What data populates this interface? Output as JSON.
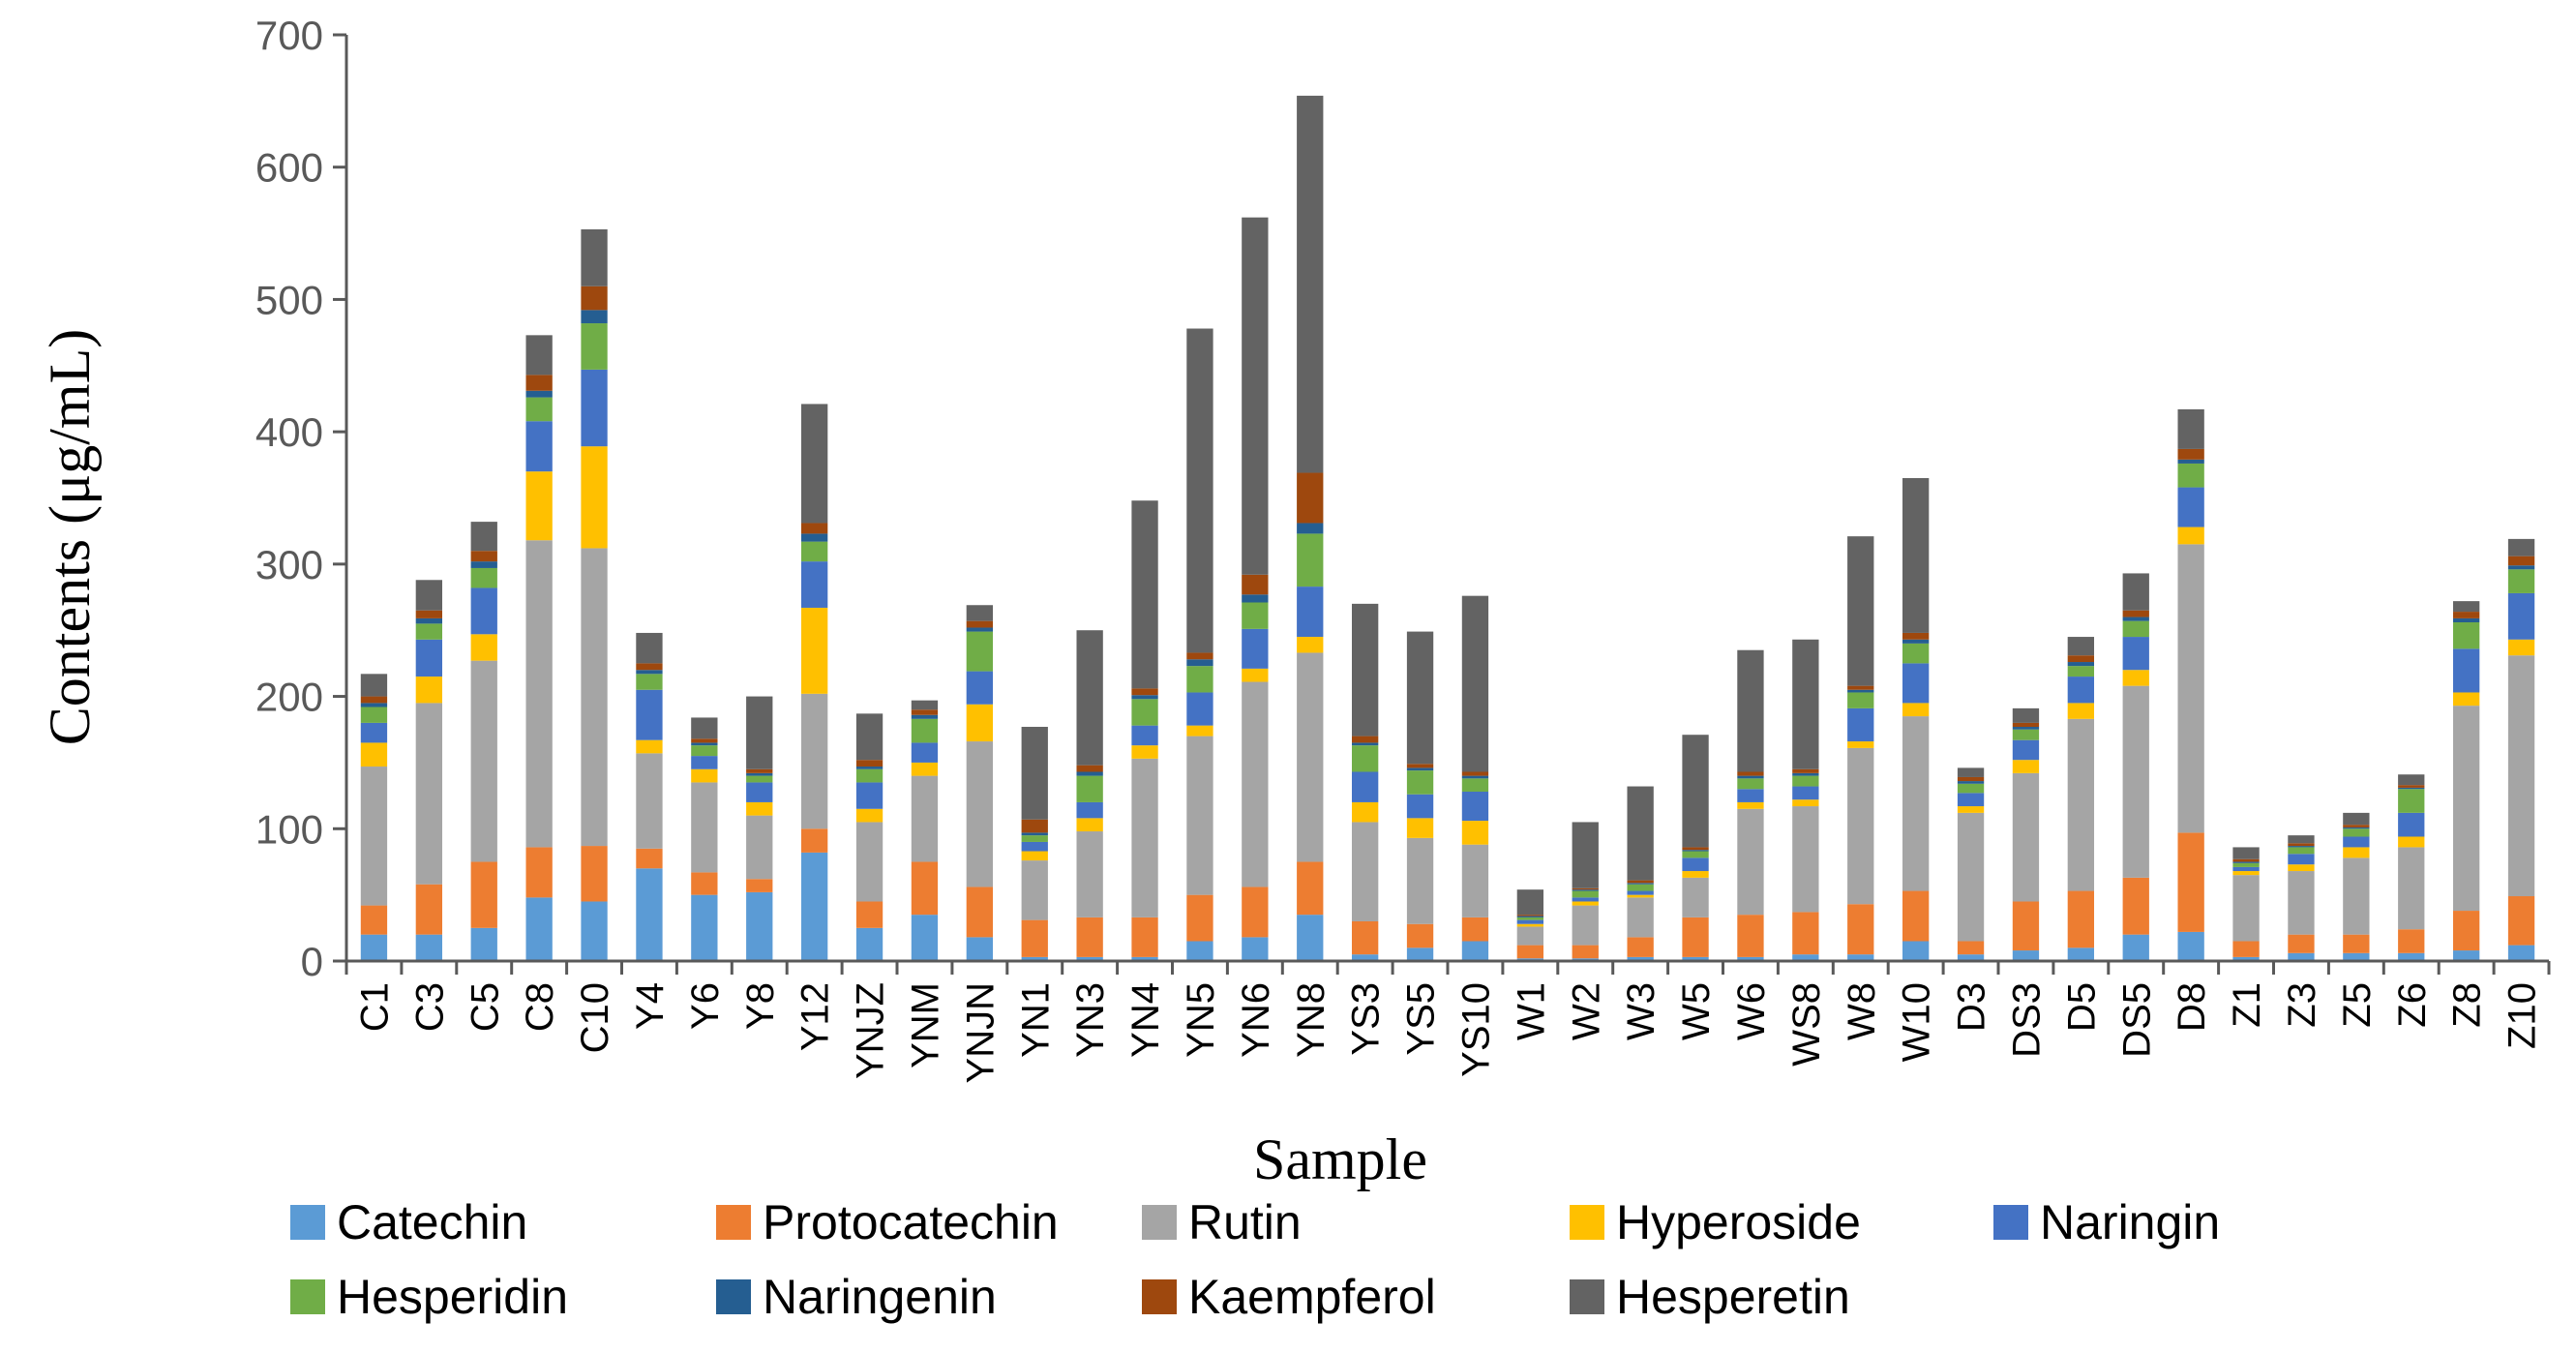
{
  "chart_data": {
    "type": "bar",
    "stacked": true,
    "title": "",
    "xlabel": "Sample",
    "ylabel": "Contents (μg/mL)",
    "ylim": [
      0,
      700
    ],
    "yticks": [
      0,
      100,
      200,
      300,
      400,
      500,
      600,
      700
    ],
    "legend_position": "bottom",
    "categories": [
      "C1",
      "C3",
      "C5",
      "C8",
      "C10",
      "Y4",
      "Y6",
      "Y8",
      "Y12",
      "YNJZ",
      "YNM",
      "YNJN",
      "YN1",
      "YN3",
      "YN4",
      "YN5",
      "YN6",
      "YN8",
      "YS3",
      "YS5",
      "YS10",
      "W1",
      "W2",
      "W3",
      "W5",
      "W6",
      "WS8",
      "W8",
      "W10",
      "D3",
      "DS3",
      "D5",
      "DS5",
      "D8",
      "Z1",
      "Z3",
      "Z5",
      "Z6",
      "Z8",
      "Z10"
    ],
    "series": [
      {
        "name": "Catechin",
        "color": "#5B9BD5",
        "values": [
          20,
          20,
          25,
          48,
          45,
          70,
          50,
          52,
          82,
          25,
          35,
          18,
          3,
          3,
          3,
          15,
          18,
          35,
          5,
          10,
          15,
          2,
          2,
          3,
          3,
          3,
          5,
          5,
          15,
          5,
          8,
          10,
          20,
          22,
          3,
          6,
          6,
          6,
          8,
          12
        ]
      },
      {
        "name": "Protocatechin",
        "color": "#ED7D31",
        "values": [
          22,
          38,
          50,
          38,
          42,
          15,
          17,
          10,
          18,
          20,
          40,
          38,
          28,
          30,
          30,
          35,
          38,
          40,
          25,
          18,
          18,
          10,
          10,
          15,
          30,
          32,
          32,
          38,
          38,
          10,
          37,
          43,
          43,
          75,
          12,
          14,
          14,
          18,
          30,
          37
        ]
      },
      {
        "name": "Rutin",
        "color": "#A5A5A5",
        "values": [
          105,
          137,
          152,
          232,
          225,
          72,
          68,
          48,
          102,
          60,
          65,
          110,
          45,
          65,
          120,
          120,
          155,
          158,
          75,
          65,
          55,
          14,
          30,
          30,
          30,
          80,
          80,
          118,
          132,
          97,
          97,
          130,
          145,
          218,
          50,
          48,
          58,
          62,
          155,
          182
        ]
      },
      {
        "name": "Hyperoside",
        "color": "#FFC000",
        "values": [
          18,
          20,
          20,
          52,
          77,
          10,
          10,
          10,
          65,
          10,
          10,
          28,
          7,
          10,
          10,
          8,
          10,
          12,
          15,
          15,
          18,
          2,
          3,
          2,
          5,
          5,
          5,
          5,
          10,
          5,
          10,
          12,
          12,
          13,
          3,
          5,
          8,
          8,
          10,
          12
        ]
      },
      {
        "name": "Naringin",
        "color": "#4472C4",
        "values": [
          15,
          28,
          35,
          38,
          58,
          38,
          10,
          15,
          35,
          20,
          15,
          25,
          7,
          12,
          15,
          25,
          30,
          38,
          23,
          18,
          22,
          3,
          3,
          3,
          10,
          10,
          10,
          25,
          30,
          10,
          15,
          20,
          25,
          30,
          3,
          8,
          8,
          18,
          33,
          35
        ]
      },
      {
        "name": "Hesperidin",
        "color": "#70AD47",
        "values": [
          12,
          12,
          15,
          18,
          35,
          12,
          8,
          5,
          15,
          10,
          18,
          30,
          5,
          20,
          20,
          20,
          20,
          40,
          20,
          18,
          10,
          2,
          5,
          5,
          5,
          8,
          8,
          12,
          15,
          7,
          8,
          8,
          12,
          18,
          3,
          5,
          6,
          18,
          20,
          18
        ]
      },
      {
        "name": "Naringenin",
        "color": "#255E91",
        "values": [
          3,
          4,
          5,
          5,
          10,
          3,
          2,
          2,
          6,
          2,
          3,
          3,
          2,
          3,
          3,
          5,
          6,
          8,
          2,
          2,
          2,
          1,
          1,
          1,
          1,
          2,
          2,
          2,
          3,
          2,
          2,
          3,
          3,
          3,
          1,
          1,
          1,
          1,
          3,
          3
        ]
      },
      {
        "name": "Kaempferol",
        "color": "#9E480E",
        "values": [
          5,
          6,
          8,
          12,
          18,
          5,
          3,
          3,
          8,
          5,
          4,
          5,
          10,
          5,
          5,
          5,
          15,
          38,
          5,
          3,
          3,
          1,
          1,
          2,
          2,
          3,
          3,
          3,
          5,
          3,
          3,
          5,
          5,
          8,
          2,
          2,
          2,
          2,
          5,
          7
        ]
      },
      {
        "name": "Hesperetin",
        "color": "#636363",
        "values": [
          17,
          23,
          22,
          30,
          43,
          23,
          16,
          55,
          90,
          35,
          7,
          12,
          70,
          102,
          142,
          245,
          270,
          285,
          100,
          100,
          133,
          19,
          50,
          71,
          85,
          92,
          98,
          113,
          117,
          7,
          11,
          14,
          28,
          30,
          9,
          6,
          9,
          8,
          8,
          13
        ]
      }
    ]
  }
}
